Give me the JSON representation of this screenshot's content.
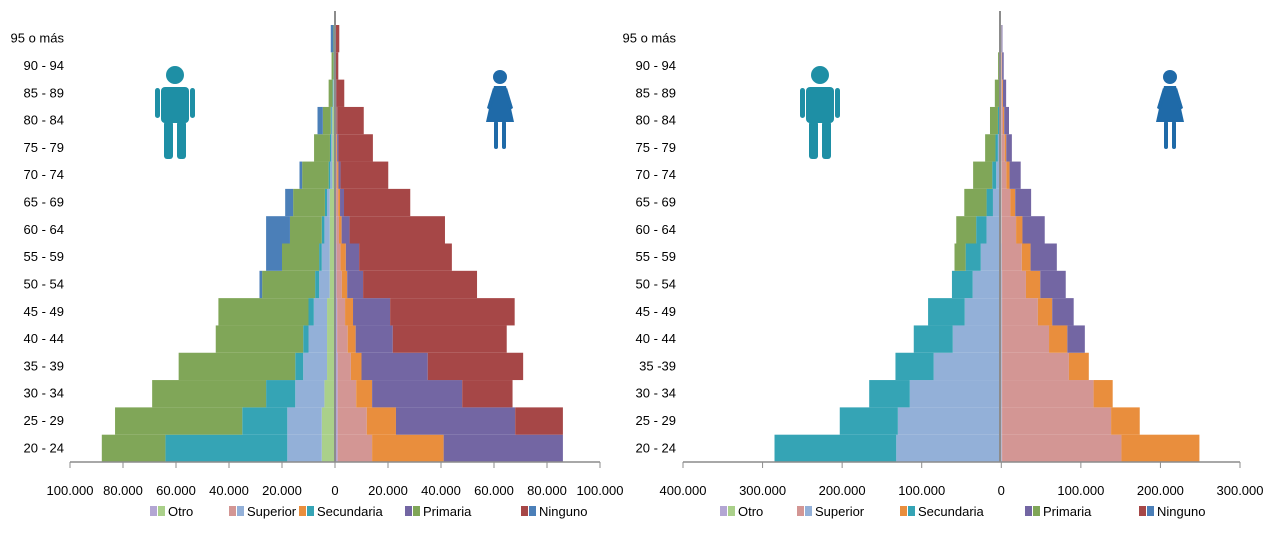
{
  "chart_data": [
    {
      "type": "bar",
      "subtype": "population-pyramid",
      "orientation": "horizontal",
      "title": "",
      "categories": [
        "20 - 24",
        "25 - 29",
        "30 - 34",
        "35 - 39",
        "40 - 44",
        "45 - 49",
        "50 - 54",
        "55 - 59",
        "60 - 64",
        "65 - 69",
        "70 - 74",
        "75 - 79",
        "80 - 84",
        "85 - 89",
        "90 - 94",
        "95 o más"
      ],
      "x_ticks": [
        "100.000",
        "80.000",
        "60.000",
        "40.000",
        "20.000",
        "0",
        "20.000",
        "40.000",
        "60.000",
        "80.000",
        "100.000"
      ],
      "xlim": [
        -100000,
        100000
      ],
      "left_label": "men",
      "right_label": "women",
      "men": {
        "series": [
          {
            "name": "Otro",
            "color": "#aad08a",
            "values": [
              5000,
              5000,
              4000,
              3000,
              3000,
              3000,
              2000,
              2000,
              2000,
              2000,
              1000,
              1000,
              1000,
              500,
              300,
              200
            ]
          },
          {
            "name": "Superior",
            "color": "#93b0d8",
            "values": [
              13000,
              13000,
              11000,
              9000,
              7000,
              5000,
              4000,
              3000,
              2000,
              1000,
              800,
              500,
              300,
              200,
              100,
              50
            ]
          },
          {
            "name": "Secundaria",
            "color": "#35a4b5",
            "values": [
              46000,
              17000,
              11000,
              3000,
              2000,
              2000,
              1500,
              1000,
              1000,
              800,
              600,
              400,
              300,
              200,
              100,
              50
            ]
          },
          {
            "name": "Primaria",
            "color": "#80a658",
            "values": [
              24000,
              48000,
              43000,
              44000,
              33000,
              34000,
              20000,
              14000,
              12000,
              12000,
              10000,
              6000,
              3000,
              1500,
              800,
              300
            ]
          },
          {
            "name": "Ninguno",
            "color": "#4b7fb8",
            "values": [
              0,
              0,
              0,
              0,
              0,
              0,
              1000,
              6000,
              9000,
              3000,
              1000,
              0,
              2000,
              0,
              0,
              1000
            ]
          }
        ]
      },
      "women": {
        "series": [
          {
            "name": "Otro",
            "color": "#b3a6d3",
            "values": [
              1000,
              1000,
              1000,
              1000,
              800,
              800,
              600,
              600,
              500,
              400,
              300,
              200,
              150,
              100,
              50,
              30
            ]
          },
          {
            "name": "Superior",
            "color": "#d39694",
            "values": [
              13000,
              11000,
              7000,
              5000,
              4000,
              3000,
              2000,
              1500,
              1000,
              800,
              500,
              300,
              200,
              100,
              50,
              20
            ]
          },
          {
            "name": "Secundaria",
            "color": "#e98e3d",
            "values": [
              27000,
              11000,
              6000,
              4000,
              3000,
              3000,
              2000,
              2000,
              1000,
              700,
              500,
              300,
              200,
              100,
              50,
              20
            ]
          },
          {
            "name": "Primaria",
            "color": "#7366a3",
            "values": [
              45000,
              45000,
              34000,
              25000,
              14000,
              14000,
              6000,
              5000,
              3000,
              1500,
              800,
              500,
              300,
              200,
              100,
              50
            ]
          },
          {
            "name": "Ninguno",
            "color": "#a64747",
            "values": [
              0,
              18000,
              19000,
              36000,
              43000,
              47000,
              43000,
              35000,
              36000,
              25000,
              18000,
              13000,
              10000,
              3000,
              1000,
              1500
            ]
          }
        ]
      }
    },
    {
      "type": "bar",
      "subtype": "population-pyramid",
      "orientation": "horizontal",
      "title": "",
      "categories": [
        "20 - 24",
        "25 - 29",
        "30 - 34",
        "35 -39",
        "40 - 44",
        "45 - 49",
        "50 - 54",
        "55 - 59",
        "60 - 64",
        "65 - 69",
        "70 - 74",
        "75 - 79",
        "80 - 84",
        "85 - 89",
        "90 - 94",
        "95 o más"
      ],
      "x_ticks": [
        "400.000",
        "300.000",
        "200.000",
        "100.000",
        "0",
        "100.000",
        "200.000",
        "300.000"
      ],
      "xlim": [
        -400000,
        300000
      ],
      "left_label": "men",
      "right_label": "women",
      "men": {
        "series": [
          {
            "name": "Otro",
            "color": "#aad08a",
            "values": [
              1000,
              1000,
              1000,
              1000,
              1000,
              1000,
              1000,
              800,
              600,
              500,
              400,
              300,
              200,
              100,
              50,
              20
            ]
          },
          {
            "name": "Superior",
            "color": "#93b0d8",
            "values": [
              131000,
              129000,
              114000,
              84000,
              60000,
              45000,
              35000,
              25000,
              18000,
              10000,
              6000,
              4000,
              2000,
              1000,
              500,
              200
            ]
          },
          {
            "name": "Secundaria",
            "color": "#35a4b5",
            "values": [
              153000,
              73000,
              51000,
              48000,
              49000,
              46000,
              26000,
              19000,
              13000,
              8000,
              5000,
              3000,
              2000,
              1000,
              500,
              200
            ]
          },
          {
            "name": "Primaria",
            "color": "#80a658",
            "values": [
              0,
              0,
              0,
              0,
              0,
              0,
              0,
              14000,
              25000,
              28000,
              24000,
              13000,
              10000,
              6000,
              3000,
              1000
            ]
          },
          {
            "name": "Ninguno",
            "color": "#4b7fb8",
            "values": [
              0,
              0,
              0,
              0,
              0,
              0,
              0,
              0,
              0,
              0,
              0,
              0,
              0,
              0,
              0,
              0
            ]
          }
        ]
      },
      "women": {
        "series": [
          {
            "name": "Otro",
            "color": "#b3a6d3",
            "values": [
              1000,
              1000,
              1000,
              1000,
              1000,
              1000,
              1000,
              800,
              600,
              500,
              400,
              300,
              200,
              100,
              50,
              20
            ]
          },
          {
            "name": "Superior",
            "color": "#d39694",
            "values": [
              150000,
              137000,
              115000,
              84000,
              59000,
              45000,
              30000,
              25000,
              18000,
              11000,
              6000,
              4000,
              2000,
              1000,
              500,
              200
            ]
          },
          {
            "name": "Secundaria",
            "color": "#e98e3d",
            "values": [
              98000,
              36000,
              24000,
              25000,
              23000,
              18000,
              18000,
              11000,
              8000,
              6000,
              4000,
              2000,
              1500,
              1000,
              500,
              200
            ]
          },
          {
            "name": "Primaria",
            "color": "#7366a3",
            "values": [
              0,
              0,
              0,
              0,
              22000,
              27000,
              32000,
              33000,
              28000,
              20000,
              14000,
              7000,
              6000,
              4000,
              2000,
              1000
            ]
          },
          {
            "name": "Ninguno",
            "color": "#a64747",
            "values": [
              0,
              0,
              0,
              0,
              0,
              0,
              0,
              0,
              0,
              0,
              0,
              0,
              0,
              0,
              0,
              0
            ]
          }
        ]
      }
    }
  ],
  "legend": [
    {
      "name": "Otro",
      "colors": [
        "#b3a6d3",
        "#aad08a"
      ]
    },
    {
      "name": "Superior",
      "colors": [
        "#d39694",
        "#93b0d8"
      ]
    },
    {
      "name": "Secundaria",
      "colors": [
        "#e98e3d",
        "#35a4b5"
      ]
    },
    {
      "name": "Primaria",
      "colors": [
        "#7366a3",
        "#80a658"
      ]
    },
    {
      "name": "Ninguno",
      "colors": [
        "#a64747",
        "#4b7fb8"
      ]
    }
  ],
  "icons": {
    "left": "man-icon",
    "right": "woman-icon",
    "man_color": "#1e8fa5",
    "woman_color": "#1f6aa8"
  }
}
